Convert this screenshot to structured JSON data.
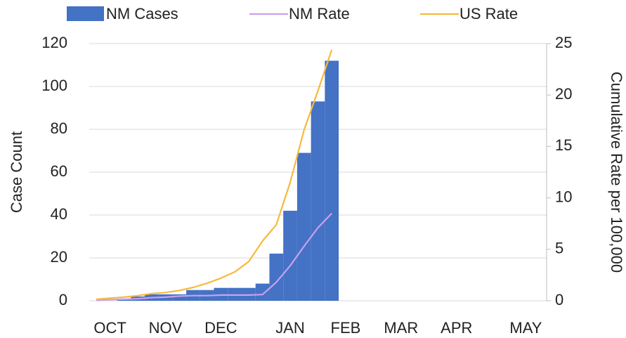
{
  "chart_data": {
    "type": "bar-line",
    "categories": [
      null,
      "OCT",
      null,
      null,
      null,
      "NOV",
      null,
      null,
      null,
      "DEC",
      null,
      null,
      null,
      null,
      "JAN",
      null,
      null,
      null,
      "FEB",
      null,
      null,
      null,
      "MAR",
      null,
      null,
      null,
      "APR",
      null,
      null,
      null,
      null,
      "MAY",
      null
    ],
    "series": [
      {
        "name": "NM Cases",
        "type": "bar",
        "color": "#4472c4",
        "values": [
          0,
          0,
          1,
          2,
          3,
          3,
          3,
          5,
          5,
          6,
          6,
          6,
          8,
          22,
          42,
          69,
          93,
          112,
          null,
          null,
          null,
          null,
          null,
          null,
          null,
          null,
          null,
          null,
          null,
          null,
          null,
          null,
          null
        ]
      },
      {
        "name": "NM Rate",
        "type": "line",
        "axis": "y2",
        "color": "#c9a0f0",
        "values": [
          0.05,
          0.1,
          0.15,
          0.2,
          0.3,
          0.35,
          0.45,
          0.5,
          0.5,
          0.55,
          0.55,
          0.55,
          0.6,
          1.8,
          3.4,
          5.3,
          7.1,
          8.5,
          null,
          null,
          null,
          null,
          null,
          null,
          null,
          null,
          null,
          null,
          null,
          null,
          null,
          null,
          null
        ]
      },
      {
        "name": "US Rate",
        "type": "line",
        "axis": "y2",
        "color": "#f7b93c",
        "values": [
          0.15,
          0.25,
          0.35,
          0.5,
          0.7,
          0.8,
          1.0,
          1.3,
          1.7,
          2.2,
          2.8,
          3.8,
          5.8,
          7.4,
          11.5,
          16.6,
          20.4,
          24.4,
          null,
          null,
          null,
          null,
          null,
          null,
          null,
          null,
          null,
          null,
          null,
          null,
          null,
          null,
          null
        ]
      }
    ],
    "y_label": "Case Count",
    "y2_label": "Cumulative Rate per 100,000",
    "ylim": [
      0,
      120
    ],
    "yticks": [
      0,
      20,
      40,
      60,
      80,
      100,
      120
    ],
    "y2lim": [
      0,
      25
    ],
    "y2ticks": [
      0,
      5,
      10,
      15,
      20,
      25
    ],
    "grid": true,
    "legend": "top"
  }
}
